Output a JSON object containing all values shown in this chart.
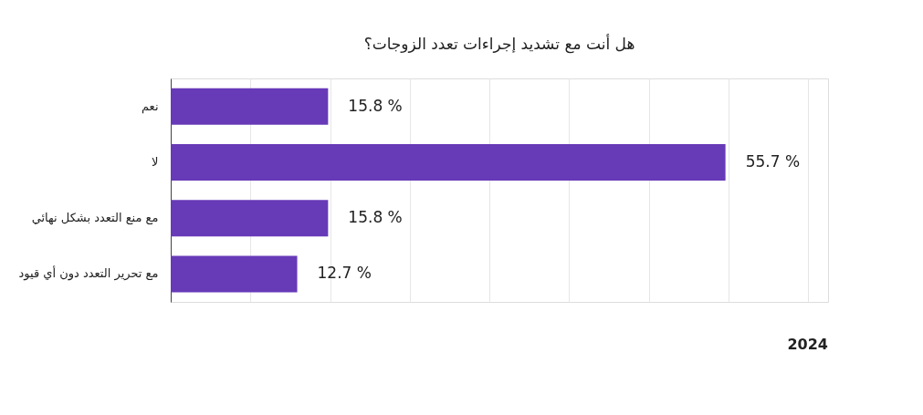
{
  "chart_data": {
    "type": "bar",
    "orientation": "horizontal",
    "title": "هل أنت مع تشديد إجراءات تعدد الزوجات؟",
    "categories": [
      "نعم",
      "لا",
      "مع منع التعدد بشكل نهائي",
      "مع تحرير التعدد دون أي قيود"
    ],
    "values": [
      15.8,
      55.7,
      15.8,
      12.7
    ],
    "value_labels": [
      "15.8 %",
      "55.7 %",
      "15.8 %",
      "12.7 %"
    ],
    "color": "#673ab7",
    "xlim": [
      0,
      66
    ],
    "xticks": [
      {
        "value": 8,
        "label": null
      },
      {
        "value": 16,
        "label": null
      },
      {
        "value": 24,
        "label": null
      },
      {
        "value": 32,
        "label": null
      },
      {
        "value": 40,
        "label": null
      },
      {
        "value": 48,
        "label": null
      },
      {
        "value": 56,
        "label": null
      },
      {
        "value": 64,
        "label": null
      }
    ],
    "grid": "x",
    "tick_labels": "y",
    "annotations": [
      "2024"
    ]
  }
}
